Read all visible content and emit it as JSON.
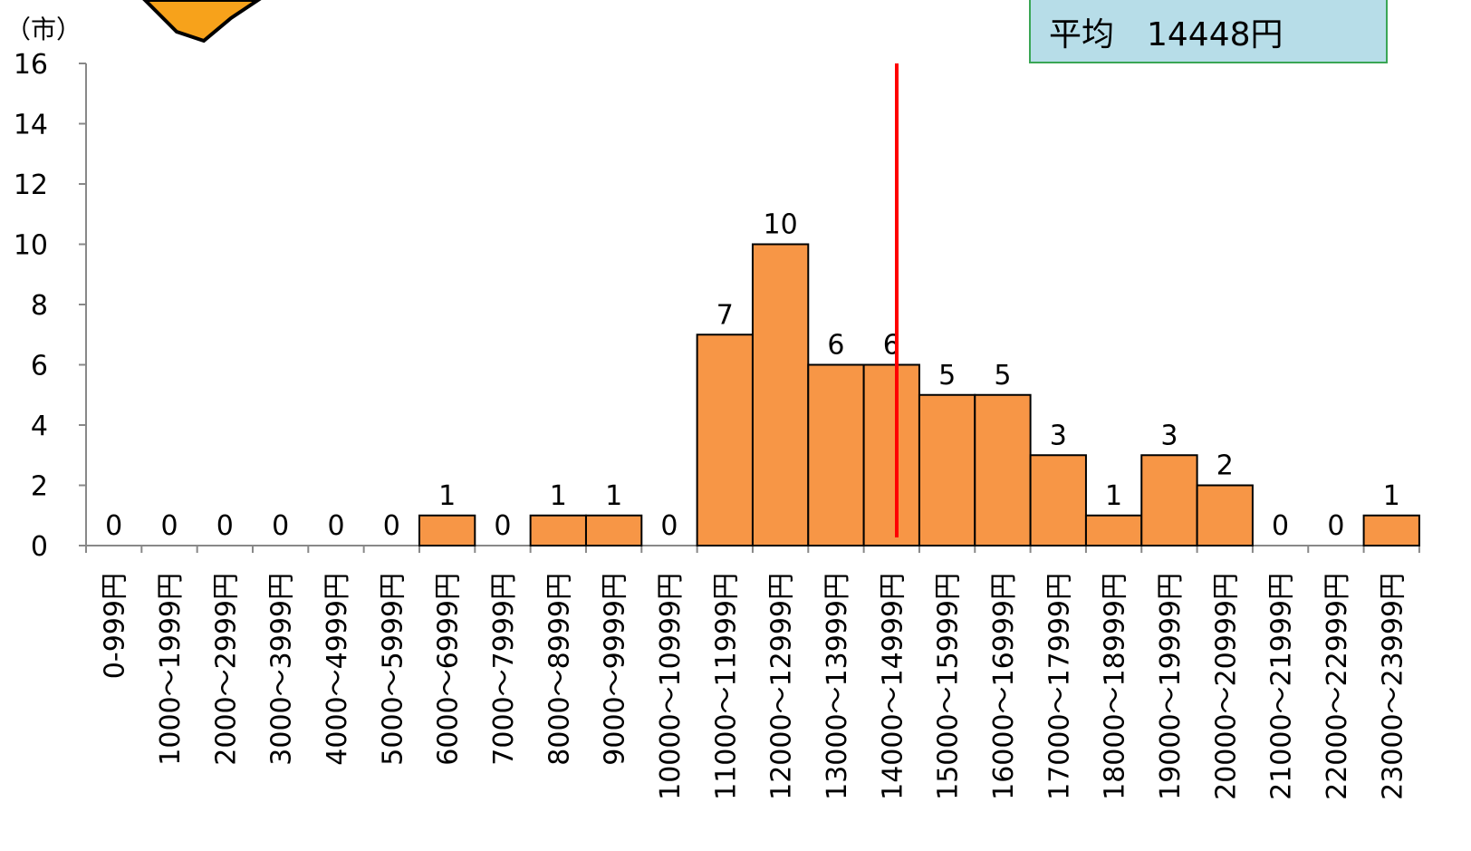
{
  "chart_data": {
    "type": "bar",
    "y_unit_label": "（市）",
    "annotation": "平均　14448円",
    "categories": [
      "0-999円",
      "1000～1999円",
      "2000～2999円",
      "3000～3999円",
      "4000～4999円",
      "5000～5999円",
      "6000～6999円",
      "7000～7999円",
      "8000～8999円",
      "9000～9999円",
      "10000～10999円",
      "11000～11999円",
      "12000～12999円",
      "13000～13999円",
      "14000～14999円",
      "15000～15999円",
      "16000～16999円",
      "17000～17999円",
      "18000～18999円",
      "19000～19999円",
      "20000～20999円",
      "21000～21999円",
      "22000～22999円",
      "23000～23999円"
    ],
    "values": [
      0,
      0,
      0,
      0,
      0,
      0,
      1,
      0,
      1,
      1,
      0,
      7,
      10,
      6,
      6,
      5,
      5,
      3,
      1,
      3,
      2,
      0,
      0,
      1
    ],
    "color": "#f79646",
    "ylim": [
      0,
      16
    ],
    "yticks": [
      0,
      2,
      4,
      6,
      8,
      10,
      12,
      14,
      16
    ],
    "grid": false
  }
}
